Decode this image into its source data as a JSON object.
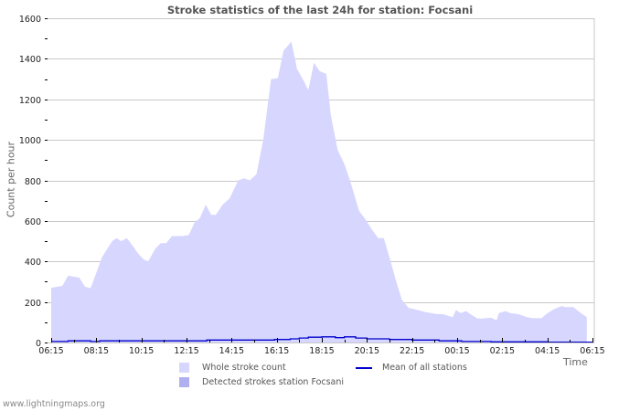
{
  "chart_data": {
    "type": "area",
    "title": "Stroke statistics of the last 24h for station: Focsani",
    "xlabel": "Time",
    "ylabel": "Count per hour",
    "ylim": [
      0,
      1600
    ],
    "yticks": [
      0,
      200,
      400,
      600,
      800,
      1000,
      1200,
      1400,
      1600
    ],
    "xticks": [
      "06:15",
      "08:15",
      "10:15",
      "12:15",
      "14:15",
      "16:15",
      "18:15",
      "20:15",
      "22:15",
      "00:15",
      "02:15",
      "04:15",
      "06:15"
    ],
    "grid": true,
    "legend_position": "bottom",
    "x_hours_from_start": [
      0,
      0.5,
      0.75,
      1.25,
      1.5,
      1.75,
      2.25,
      2.7,
      2.9,
      3.1,
      3.35,
      3.5,
      3.85,
      4.1,
      4.3,
      4.6,
      4.85,
      5.1,
      5.35,
      5.8,
      6.1,
      6.35,
      6.6,
      6.85,
      7.1,
      7.3,
      7.6,
      7.9,
      8.3,
      8.55,
      8.8,
      9.1,
      9.4,
      9.75,
      10.05,
      10.3,
      10.65,
      10.9,
      11.2,
      11.4,
      11.65,
      11.9,
      12.2,
      12.4,
      12.7,
      13.0,
      13.25,
      13.65,
      13.95,
      14.2,
      14.5,
      14.75,
      15.05,
      15.3,
      15.55,
      15.85,
      16.1,
      16.6,
      17.1,
      17.35,
      17.8,
      17.95,
      18.15,
      18.4,
      18.65,
      18.9,
      19.1,
      19.5,
      19.75,
      19.85,
      20.15,
      20.35,
      20.7,
      21.1,
      21.35,
      21.75,
      21.95,
      22.3,
      22.65,
      22.8,
      23.15,
      23.55,
      23.75
    ],
    "series": [
      {
        "name": "Whole stroke count",
        "color": "#d6d6ff",
        "values": [
          270,
          280,
          330,
          320,
          275,
          268,
          420,
          500,
          515,
          500,
          515,
          495,
          440,
          410,
          400,
          460,
          490,
          490,
          525,
          525,
          530,
          590,
          615,
          680,
          630,
          630,
          680,
          710,
          800,
          810,
          800,
          830,
          1000,
          1300,
          1305,
          1440,
          1485,
          1350,
          1290,
          1245,
          1380,
          1340,
          1325,
          1120,
          950,
          880,
          800,
          650,
          605,
          560,
          515,
          515,
          400,
          300,
          210,
          170,
          165,
          150,
          140,
          140,
          125,
          160,
          145,
          155,
          135,
          118,
          118,
          122,
          110,
          145,
          155,
          145,
          140,
          125,
          120,
          120,
          140,
          165,
          180,
          175,
          175,
          140,
          125
        ]
      },
      {
        "name": "Detected strokes station Focsani",
        "color": "#b0b0f0",
        "values": []
      },
      {
        "name": "Mean of all stations",
        "color": "#0000cc",
        "x_hours_from_start": [
          0,
          0.75,
          1.75,
          2.15,
          3.5,
          5.0,
          6.9,
          8.4,
          9.9,
          10.6,
          11.0,
          11.4,
          12.0,
          12.6,
          13.0,
          13.5,
          14.0,
          15.0,
          16.0,
          17.2,
          18.2,
          19.5,
          22.0,
          24.0
        ],
        "values": [
          5,
          8,
          5,
          8,
          8,
          8,
          12,
          12,
          15,
          18,
          22,
          26,
          28,
          24,
          28,
          22,
          18,
          15,
          12,
          8,
          5,
          3,
          2,
          2
        ]
      }
    ]
  },
  "legend": {
    "whole": "Whole stroke count",
    "detected": "Detected strokes station Focsani",
    "mean": "Mean of all stations"
  },
  "colors": {
    "whole": "#d6d6ff",
    "detected": "#b0b0f0",
    "mean": "#0000cc",
    "grid": "#c8c8c8"
  },
  "footer": {
    "credit": "www.lightningmaps.org"
  }
}
